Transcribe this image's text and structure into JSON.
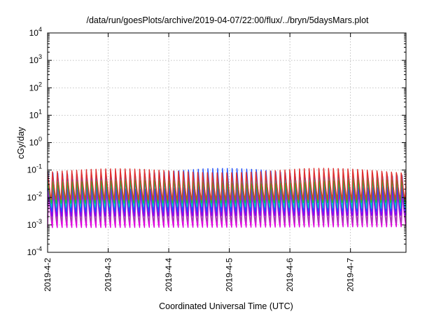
{
  "chart_data": {
    "type": "line",
    "title": "/data/run/goesPlots/archive/2019-04-07/22:00/flux/../bryn/5daysMars.plot",
    "xlabel": "Coordinated Universal Time (UTC)",
    "ylabel": "cGy/day",
    "yscale": "log",
    "ylim": [
      0.0001,
      10000
    ],
    "y_ticks": [
      {
        "base": "10",
        "exp": "-4"
      },
      {
        "base": "10",
        "exp": "-3"
      },
      {
        "base": "10",
        "exp": "-2"
      },
      {
        "base": "10",
        "exp": "-1"
      },
      {
        "base": "10",
        "exp": "0"
      },
      {
        "base": "10",
        "exp": "1"
      },
      {
        "base": "10",
        "exp": "2"
      },
      {
        "base": "10",
        "exp": "3"
      },
      {
        "base": "10",
        "exp": "4"
      }
    ],
    "x_ticks": [
      "2019-4-2",
      "2019-4-3",
      "2019-4-4",
      "2019-4-5",
      "2019-4-6",
      "2019-4-7"
    ],
    "xlim": [
      "2019-04-02 00:00",
      "2019-04-07 22:00"
    ],
    "grid": true,
    "legend": "none",
    "cycles_per_day": 12.5,
    "series": [
      {
        "color": "#e000e0",
        "peak": 0.018,
        "trough": 0.0008
      },
      {
        "color": "#a040b0",
        "peak": 0.025,
        "trough": 0.0012
      },
      {
        "color": "#8000ff",
        "peak": 0.035,
        "trough": 0.002
      },
      {
        "color": "#2050ff",
        "peak": 0.09,
        "trough": 0.003
      },
      {
        "color": "#00c0c0",
        "peak": 0.06,
        "trough": 0.004
      },
      {
        "color": "#30b030",
        "peak": 0.045,
        "trough": 0.006
      },
      {
        "color": "#e03030",
        "peak": 0.1,
        "trough": 0.008
      }
    ]
  }
}
